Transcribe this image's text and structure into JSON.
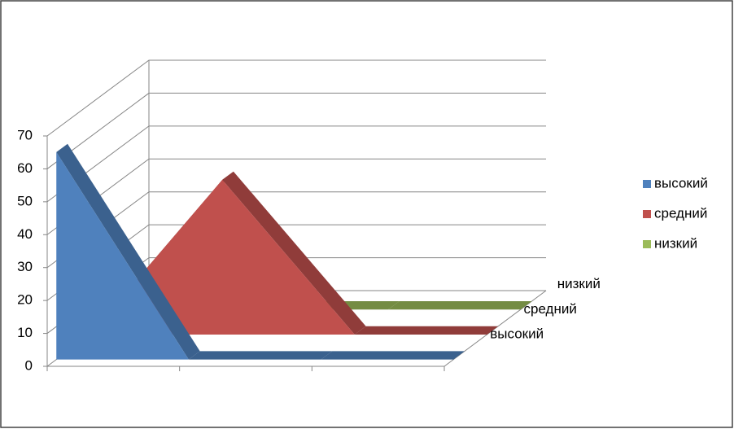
{
  "chart_data": {
    "type": "area3d",
    "categories": [
      null,
      null,
      null,
      null
    ],
    "series": [
      {
        "name": "высокий",
        "color": "#4f81bd",
        "values": [
          63,
          0,
          0,
          0
        ]
      },
      {
        "name": "средний",
        "color": "#c0504d",
        "values": [
          0,
          47,
          0,
          0
        ]
      },
      {
        "name": "низкий",
        "color": "#9bbb59",
        "values": [
          0,
          0,
          0,
          0
        ]
      }
    ],
    "ylim": [
      0,
      70
    ],
    "yticks": [
      0,
      10,
      20,
      30,
      40,
      50,
      60,
      70
    ],
    "grid": true,
    "legend": "right"
  }
}
